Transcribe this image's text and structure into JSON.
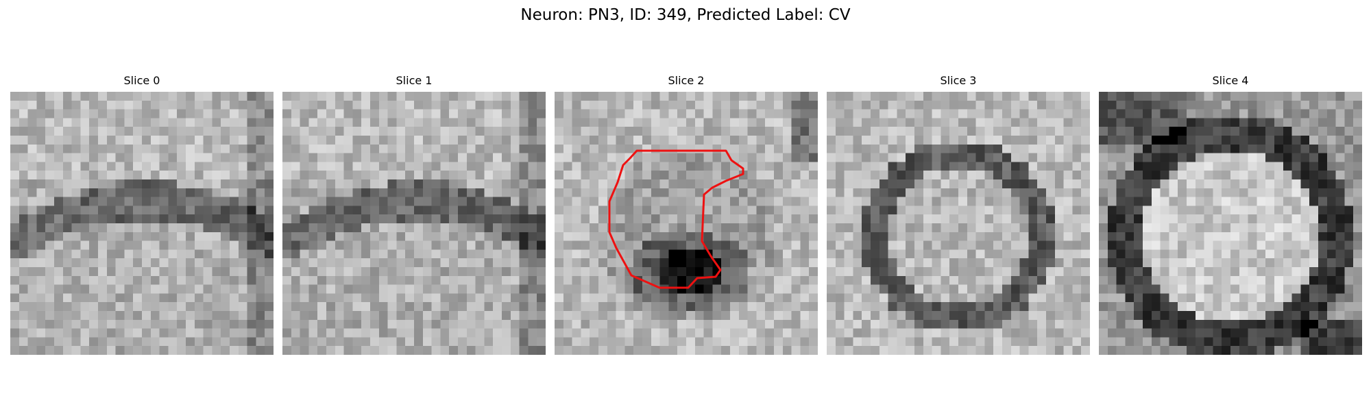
{
  "figure": {
    "title": "Neuron: PN3, ID: 349, Predicted Label: CV"
  },
  "slices": [
    {
      "title": "Slice 0",
      "pattern": "bands",
      "seed": 11,
      "contour": false
    },
    {
      "title": "Slice 1",
      "pattern": "bands",
      "seed": 23,
      "contour": false
    },
    {
      "title": "Slice 2",
      "pattern": "dark-blob",
      "seed": 37,
      "contour": true,
      "contour_color": "#ee1111"
    },
    {
      "title": "Slice 3",
      "pattern": "ring",
      "seed": 53,
      "contour": false
    },
    {
      "title": "Slice 4",
      "pattern": "bright-cell",
      "seed": 71,
      "contour": false
    }
  ],
  "colors": {
    "background": "#ffffff",
    "contour": "#ee1111"
  }
}
